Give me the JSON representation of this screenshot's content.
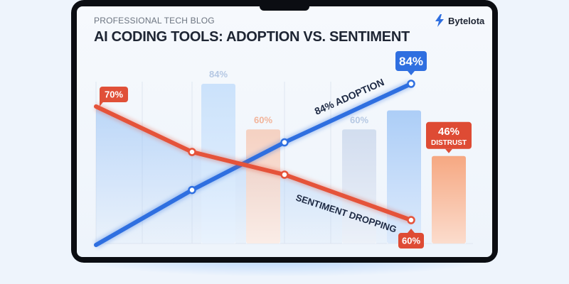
{
  "header": {
    "kicker": "PROFESSIONAL TECH BLOG",
    "brand": "Bytelota",
    "brand_icon": "bolt-logo-icon"
  },
  "chart_data": {
    "type": "line",
    "title": "AI CODING TOOLS: ADOPTION VS. SENTIMENT",
    "grid": "vertical-only",
    "series": [
      {
        "name": "84% ADOPTION",
        "color": "#2f6fe0",
        "values": [
          40,
          55,
          68,
          84
        ],
        "end_label": "84%"
      },
      {
        "name": "SENTIMENT DROPPING",
        "color": "#e5533a",
        "values": [
          70,
          66,
          64,
          60
        ],
        "start_label": "70%",
        "end_label": "60%"
      }
    ],
    "bars": [
      {
        "value": 84,
        "label": "84%",
        "color": "#b9d8fb"
      },
      {
        "value": 60,
        "label": "60%",
        "color": "#f6c2aa"
      },
      {
        "value": 60,
        "label": "60%",
        "color": "#c5d3ea"
      },
      {
        "value": 70,
        "label": "",
        "color": "#8ebcf5"
      },
      {
        "value": 46,
        "label": "46%",
        "sublabel": "DISTRUST",
        "color": "#f79a6c"
      }
    ]
  }
}
